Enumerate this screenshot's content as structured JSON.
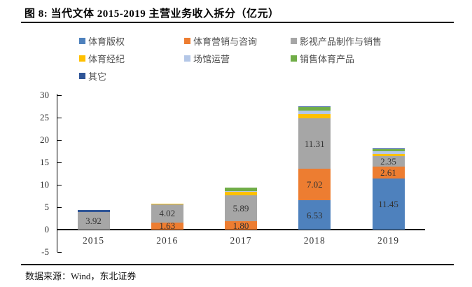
{
  "page": {
    "title": "图  8:  当代文体 2015-2019 主营业务收入拆分（亿元）",
    "source_note": "数据来源：Wind，东北证券"
  },
  "chart_data": {
    "type": "bar",
    "stacked": true,
    "title": "当代文体 2015-2019 主营业务收入拆分（亿元）",
    "unit": "亿元",
    "categories": [
      "2015",
      "2016",
      "2017",
      "2018",
      "2019"
    ],
    "series": [
      {
        "name": "体育版权",
        "color": "#4E81BD",
        "values": [
          0,
          0,
          0,
          6.53,
          11.45
        ]
      },
      {
        "name": "体育营销与咨询",
        "color": "#ED7D31",
        "values": [
          0,
          1.63,
          1.8,
          7.02,
          2.61
        ]
      },
      {
        "name": "影视产品制作与销售",
        "color": "#A6A6A6",
        "values": [
          3.92,
          4.02,
          5.89,
          11.31,
          2.35
        ]
      },
      {
        "name": "体育经纪",
        "color": "#FFC000",
        "values": [
          0,
          0.18,
          0.75,
          0.9,
          0.5
        ]
      },
      {
        "name": "场馆运营",
        "color": "#B4C7E7",
        "values": [
          0,
          0,
          0.15,
          0.75,
          0.55
        ]
      },
      {
        "name": "销售体育产品",
        "color": "#70AD47",
        "values": [
          0,
          0,
          0.75,
          0.85,
          0.55
        ]
      },
      {
        "name": "其它",
        "color": "#2F5597",
        "values": [
          0.5,
          0,
          0,
          0.15,
          0.15
        ]
      }
    ],
    "visible_bar_labels": {
      "2015": [
        "3.92"
      ],
      "2016": [
        "1.63",
        "4.02"
      ],
      "2017": [
        "1.80",
        "5.89"
      ],
      "2018": [
        "6.53",
        "7.02",
        "11.31"
      ],
      "2019": [
        "11.45",
        "2.61",
        "2.35"
      ]
    },
    "label_min_value": 1.5,
    "ylim": [
      -5,
      30
    ],
    "yticks": [
      30,
      25,
      20,
      15,
      10,
      5,
      0,
      -5
    ],
    "grid": false,
    "legend_position": "top-left"
  }
}
